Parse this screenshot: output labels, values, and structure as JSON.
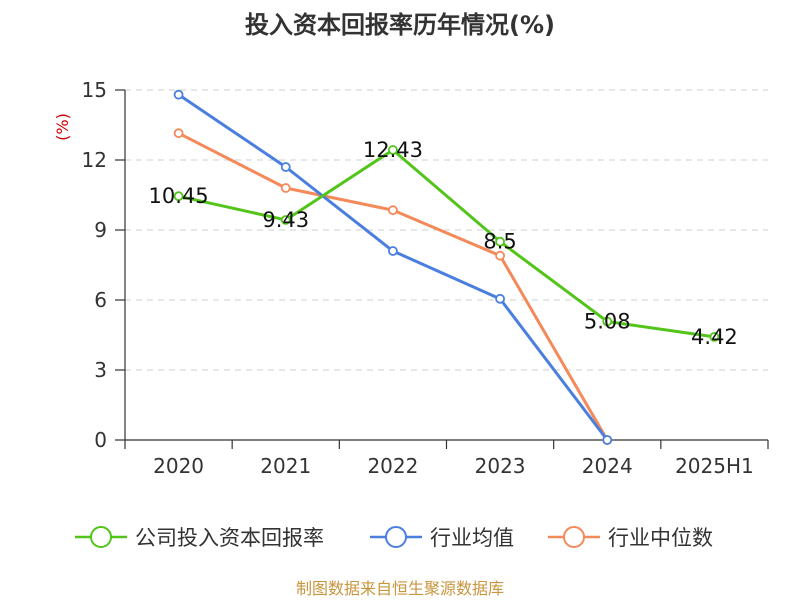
{
  "chart_data": {
    "type": "line",
    "title": "投入资本回报率历年情况(%)",
    "ylabel": "(%)",
    "xlabel": "",
    "categories": [
      "2020",
      "2021",
      "2022",
      "2023",
      "2024",
      "2025H1"
    ],
    "ylim": [
      0,
      15
    ],
    "yticks": [
      0,
      3,
      6,
      9,
      12,
      15
    ],
    "grid": true,
    "legend_position": "bottom",
    "series": [
      {
        "name": "公司投入资本回报率",
        "color": "#52c41a",
        "values": [
          10.45,
          9.43,
          12.43,
          8.5,
          5.08,
          4.42
        ],
        "labels": [
          "10.45",
          "9.43",
          "12.43",
          "8.5",
          "5.08",
          "4.42"
        ]
      },
      {
        "name": "行业均值",
        "color": "#4a7fe0",
        "values": [
          14.8,
          11.7,
          8.1,
          6.05,
          0,
          null
        ]
      },
      {
        "name": "行业中位数",
        "color": "#f4895a",
        "values": [
          13.15,
          10.8,
          9.85,
          7.9,
          0,
          null
        ]
      }
    ],
    "source": "制图数据来自恒生聚源数据库"
  }
}
